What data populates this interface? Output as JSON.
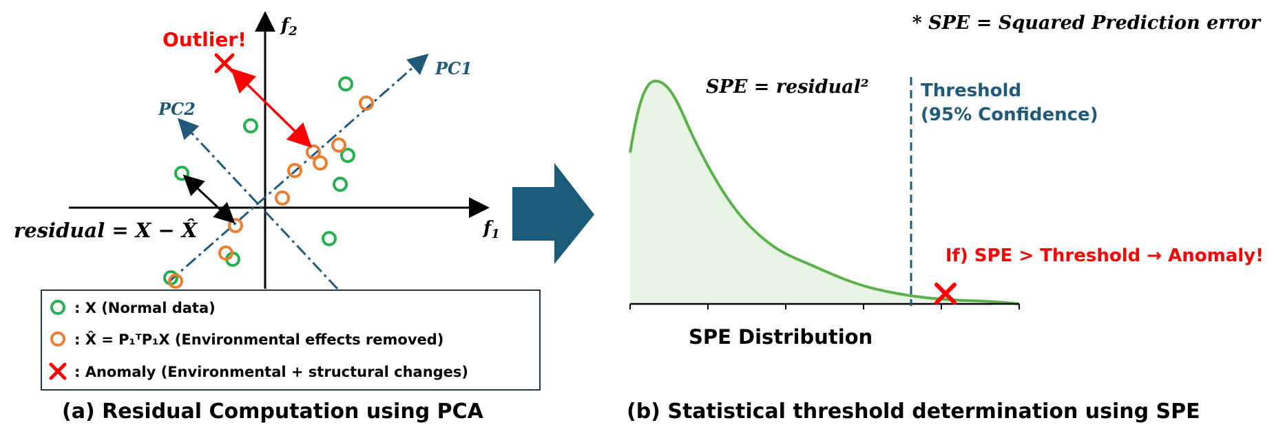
{
  "panel_a": {
    "axis_f2": "f",
    "axis_f2_sub": "2",
    "axis_f1": "f",
    "axis_f1_sub": "1",
    "pc1_label": "PC1",
    "pc2_label": "PC2",
    "outlier_label": "Outlier!",
    "residual_label": "residual = X − X̂",
    "legend": {
      "normal": ": X (Normal data)",
      "reconstructed": ": X̂ = P₁ᵀP₁X (Environmental effects removed)",
      "anomaly": ": Anomaly (Environmental + structural changes)"
    },
    "caption": "(a) Residual Computation using PCA"
  },
  "panel_b": {
    "spe_definition": "* SPE = Squared Prediction error",
    "spe_formula": "SPE = residual²",
    "threshold_line1": "Threshold",
    "threshold_line2": "(95% Confidence)",
    "anomaly_rule": "If) SPE > Threshold → Anomaly!",
    "x_axis_label": "SPE Distribution",
    "caption": "(b) Statistical threshold determination using SPE"
  },
  "colors": {
    "normal": "#22b14c",
    "reconstructed": "#ed7d31",
    "anomaly": "#ff0000",
    "pc_axis": "#1f5a7a",
    "arrow": "#1a5a7a",
    "curve": "#5ab14a",
    "curve_fill": "#e8f5e4",
    "threshold": "#1f5a7a"
  }
}
